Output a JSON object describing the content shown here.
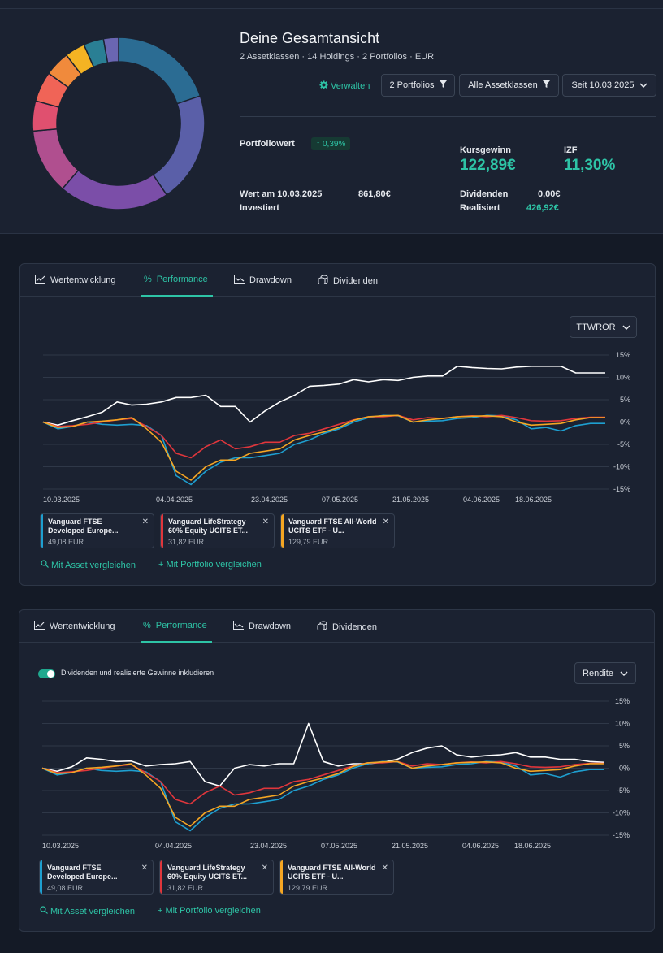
{
  "overview": {
    "title": "Deine Gesamtansicht",
    "subtitle": "2 Assetklassen · 14 Holdings · 2 Portfolios · EUR",
    "manage_label": "Verwalten",
    "filters": [
      "2 Portfolios",
      "Alle Assetklassen",
      "Seit 10.03.2025"
    ],
    "portfolio_value_label": "Portfoliowert",
    "portfolio_change": "0,39%",
    "value_at_label": "Wert am 10.03.2025",
    "value_at": "861,80€",
    "invested_label": "Investiert",
    "kursgewinn_label": "Kursgewinn",
    "kursgewinn": "122,89€",
    "izf_label": "IZF",
    "izf": "11,30%",
    "dividends_label": "Dividenden",
    "dividends": "0,00€",
    "realized_label": "Realisiert",
    "realized": "426,92€",
    "donut_colors": [
      "#2b6c93",
      "#5a5fa8",
      "#7b4ea8",
      "#b04f8f",
      "#e0506f",
      "#f06457",
      "#f08a3c",
      "#f4b323",
      "#2a7f94",
      "#6a66b2"
    ],
    "donut_shares": [
      21,
      22,
      22,
      13,
      6,
      6,
      5,
      4,
      4,
      3
    ]
  },
  "cards": [
    {
      "tabs": [
        "Wertentwicklung",
        "Performance",
        "Drawdown",
        "Dividenden"
      ],
      "select": "TTWROR",
      "chips": [
        {
          "name": "Vanguard FTSE Developed Europe...",
          "amount": "49,08 EUR",
          "color": "#1e9fd0"
        },
        {
          "name": "Vanguard LifeStrategy 60% Equity UCITS ET...",
          "amount": "31,82 EUR",
          "color": "#e0363c"
        },
        {
          "name": "Vanguard FTSE All-World UCITS ETF - U...",
          "amount": "129,79 EUR",
          "color": "#f5a623"
        }
      ],
      "compare_asset": "Mit Asset vergleichen",
      "compare_portfolio": "Mit Portfolio vergleichen"
    },
    {
      "tabs": [
        "Wertentwicklung",
        "Performance",
        "Drawdown",
        "Dividenden"
      ],
      "select": "Rendite",
      "toggle_label": "Dividenden und realisierte Gewinne inkludieren",
      "chips": [
        {
          "name": "Vanguard FTSE Developed Europe...",
          "amount": "49,08 EUR",
          "color": "#1e9fd0"
        },
        {
          "name": "Vanguard LifeStrategy 60% Equity UCITS ET...",
          "amount": "31,82 EUR",
          "color": "#e0363c"
        },
        {
          "name": "Vanguard FTSE All-World UCITS ETF - U...",
          "amount": "129,79 EUR",
          "color": "#f5a623"
        }
      ],
      "compare_asset": "Mit Asset vergleichen",
      "compare_portfolio": "Mit Portfolio vergleichen"
    }
  ],
  "chart_data": [
    {
      "type": "line",
      "x_labels": [
        "10.03.2025",
        "04.04.2025",
        "23.04.2025",
        "07.05.2025",
        "21.05.2025",
        "04.06.2025",
        "18.06.2025"
      ],
      "y_ticks": [
        "15%",
        "10%",
        "5%",
        "0%",
        "-5%",
        "-10%",
        "-15%"
      ],
      "ylim": [
        -15,
        15
      ],
      "grid": true,
      "series": [
        {
          "color": "#ffffff",
          "values": [
            0,
            -0.7,
            0.3,
            1.2,
            2.2,
            4.5,
            3.8,
            4,
            4.5,
            5.5,
            5.5,
            6,
            3.5,
            3.5,
            0,
            2.5,
            4.5,
            6,
            8,
            8.2,
            8.5,
            9.5,
            9,
            9.5,
            9.3,
            10,
            10.3,
            10.3,
            12.5,
            12.2,
            12,
            11.9,
            12.3,
            12.5,
            12.5,
            12.5,
            11,
            11,
            11
          ]
        },
        {
          "color": "#1e9fd0",
          "values": [
            0,
            -1.5,
            -1,
            0,
            -0.5,
            -0.7,
            -0.5,
            -0.8,
            -3,
            -12,
            -14,
            -11,
            -9,
            -8,
            -8,
            -7.5,
            -7,
            -5,
            -4,
            -2.5,
            -1.5,
            0,
            1,
            1.5,
            1.4,
            0,
            0.2,
            0.3,
            0.8,
            1,
            1.5,
            1.4,
            0.5,
            -1.5,
            -1.2,
            -2,
            -0.8,
            -0.3,
            -0.3
          ]
        },
        {
          "color": "#e0363c",
          "values": [
            0,
            -1,
            -0.8,
            -0.5,
            0,
            0.5,
            0.8,
            -1,
            -3,
            -7,
            -8,
            -5.5,
            -4,
            -6,
            -5.5,
            -4.5,
            -4.5,
            -3,
            -2.5,
            -1.5,
            -0.5,
            0.5,
            1.2,
            1.2,
            1.5,
            0.5,
            1,
            0.8,
            1.2,
            1.4,
            1.2,
            1.5,
            1,
            0.3,
            0.2,
            0.3,
            0.8,
            1.1,
            1.1
          ]
        },
        {
          "color": "#f5a623",
          "values": [
            0,
            -1.2,
            -1,
            0,
            0.2,
            0.5,
            1,
            -1.5,
            -4.5,
            -11,
            -13,
            -10,
            -8.5,
            -8.5,
            -7,
            -6.5,
            -6,
            -4,
            -3,
            -2.2,
            -1.2,
            0.4,
            1.2,
            1.4,
            1.5,
            0,
            0.5,
            0.8,
            1.2,
            1.3,
            1.4,
            1.2,
            0,
            -0.7,
            -0.5,
            -0.3,
            0.5,
            1,
            1
          ]
        }
      ]
    },
    {
      "type": "line",
      "x_labels": [
        "10.03.2025",
        "04.04.2025",
        "23.04.2025",
        "07.05.2025",
        "21.05.2025",
        "04.06.2025",
        "18.06.2025"
      ],
      "y_ticks": [
        "15%",
        "10%",
        "5%",
        "0%",
        "-5%",
        "-10%",
        "-15%"
      ],
      "ylim": [
        -15,
        15
      ],
      "grid": true,
      "series": [
        {
          "color": "#ffffff",
          "values": [
            0,
            -0.7,
            0.3,
            2.3,
            2,
            1.5,
            1.6,
            0.5,
            0.8,
            1,
            1.5,
            -3,
            -4,
            0,
            0.8,
            0.5,
            1,
            1,
            10,
            1.5,
            0.5,
            1,
            1,
            1.3,
            2,
            3.5,
            4.5,
            5,
            3,
            2.5,
            2.8,
            3,
            3.5,
            2.5,
            2.5,
            2,
            2,
            1.5,
            1.3
          ]
        },
        {
          "color": "#1e9fd0",
          "values": [
            0,
            -1.5,
            -1,
            0,
            -0.5,
            -0.7,
            -0.5,
            -0.8,
            -3,
            -12,
            -14,
            -11,
            -9,
            -8,
            -8,
            -7.5,
            -7,
            -5,
            -4,
            -2.5,
            -1.5,
            0,
            1,
            1.5,
            1.4,
            0,
            0.2,
            0.3,
            0.8,
            1,
            1.5,
            1.4,
            0.5,
            -1.5,
            -1.2,
            -2,
            -0.8,
            -0.3,
            -0.3
          ]
        },
        {
          "color": "#e0363c",
          "values": [
            0,
            -1,
            -0.8,
            -0.5,
            0,
            0.5,
            0.8,
            -1,
            -3,
            -7,
            -8,
            -5.5,
            -4,
            -6,
            -5.5,
            -4.5,
            -4.5,
            -3,
            -2.5,
            -1.5,
            -0.5,
            0.5,
            1.2,
            1.2,
            1.5,
            0.5,
            1,
            0.8,
            1.2,
            1.4,
            1.2,
            1.5,
            1,
            0.3,
            0.2,
            0.3,
            0.8,
            1.1,
            1.1
          ]
        },
        {
          "color": "#f5a623",
          "values": [
            0,
            -1.2,
            -1,
            0,
            0.2,
            0.5,
            1,
            -1.5,
            -4.5,
            -11,
            -13,
            -10,
            -8.5,
            -8.5,
            -7,
            -6.5,
            -6,
            -4,
            -3,
            -2.2,
            -1.2,
            0.4,
            1.2,
            1.4,
            1.5,
            0,
            0.5,
            0.8,
            1.2,
            1.3,
            1.4,
            1.2,
            0,
            -0.7,
            -0.5,
            -0.3,
            0.5,
            1,
            1
          ]
        }
      ]
    }
  ]
}
